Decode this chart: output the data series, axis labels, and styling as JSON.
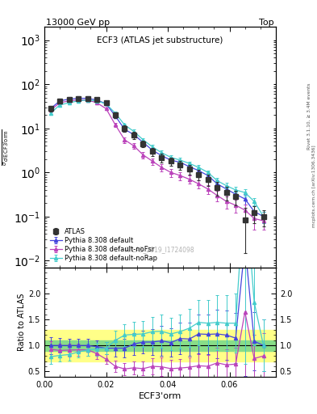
{
  "title_left": "13000 GeV pp",
  "title_right": "Top",
  "panel_title": "ECF3 (ATLAS jet substructure)",
  "ylabel_main": "1/σ dσ/d ECF3'orm",
  "ylabel_ratio": "Ratio to ATLAS",
  "xlabel": "ECF3'orm",
  "watermark": "ATLAS_2019_I1724098",
  "right_label_top": "Rivet 3.1.10, ≥ 3.4M events",
  "right_label_bot": "mcplots.cern.ch [arXiv:1306.3436]",
  "atlas_x": [
    0.002,
    0.005,
    0.008,
    0.011,
    0.014,
    0.017,
    0.02,
    0.023,
    0.026,
    0.029,
    0.032,
    0.035,
    0.038,
    0.041,
    0.044,
    0.047,
    0.05,
    0.053,
    0.056,
    0.059,
    0.062,
    0.065,
    0.068,
    0.071
  ],
  "atlas_y": [
    28,
    42,
    46,
    48,
    48,
    45,
    38,
    20,
    10,
    7,
    4.5,
    3.0,
    2.2,
    1.8,
    1.5,
    1.2,
    0.9,
    0.7,
    0.45,
    0.35,
    0.28,
    0.085,
    0.12,
    0.1
  ],
  "atlas_yerr": [
    4,
    5,
    5,
    5,
    5,
    5,
    4,
    3,
    1.5,
    1.2,
    0.8,
    0.6,
    0.5,
    0.4,
    0.35,
    0.3,
    0.25,
    0.2,
    0.15,
    0.12,
    0.1,
    0.07,
    0.05,
    0.04
  ],
  "py_def_x": [
    0.002,
    0.005,
    0.008,
    0.011,
    0.014,
    0.017,
    0.02,
    0.023,
    0.026,
    0.029,
    0.032,
    0.035,
    0.038,
    0.041,
    0.044,
    0.047,
    0.05,
    0.053,
    0.056,
    0.059,
    0.062,
    0.065,
    0.068,
    0.071
  ],
  "py_def_y": [
    28,
    42,
    46,
    48,
    48,
    44,
    36,
    19,
    9.5,
    7.2,
    4.8,
    3.2,
    2.4,
    1.9,
    1.7,
    1.35,
    1.1,
    0.85,
    0.55,
    0.42,
    0.32,
    0.25,
    0.13,
    0.1
  ],
  "py_def_yerr": [
    2,
    3,
    3,
    3,
    3,
    3,
    2.5,
    1.5,
    1.0,
    0.8,
    0.5,
    0.4,
    0.3,
    0.25,
    0.22,
    0.18,
    0.15,
    0.12,
    0.1,
    0.08,
    0.07,
    0.06,
    0.04,
    0.03
  ],
  "py_nofsr_x": [
    0.002,
    0.005,
    0.008,
    0.011,
    0.014,
    0.017,
    0.02,
    0.023,
    0.026,
    0.029,
    0.032,
    0.035,
    0.038,
    0.041,
    0.044,
    0.047,
    0.05,
    0.053,
    0.056,
    0.059,
    0.062,
    0.065,
    0.068,
    0.071
  ],
  "py_nofsr_y": [
    26,
    38,
    42,
    44,
    44,
    38,
    28,
    12,
    5.5,
    4.0,
    2.5,
    1.8,
    1.3,
    1.0,
    0.85,
    0.7,
    0.55,
    0.42,
    0.3,
    0.22,
    0.18,
    0.14,
    0.09,
    0.08
  ],
  "py_nofsr_yerr": [
    2,
    3,
    3,
    3,
    3,
    2.5,
    2,
    1.2,
    0.8,
    0.6,
    0.4,
    0.3,
    0.25,
    0.2,
    0.18,
    0.15,
    0.12,
    0.1,
    0.08,
    0.07,
    0.06,
    0.05,
    0.04,
    0.03
  ],
  "py_norap_x": [
    0.002,
    0.005,
    0.008,
    0.011,
    0.014,
    0.017,
    0.02,
    0.023,
    0.026,
    0.029,
    0.032,
    0.035,
    0.038,
    0.041,
    0.044,
    0.047,
    0.05,
    0.053,
    0.056,
    0.059,
    0.062,
    0.065,
    0.068,
    0.071
  ],
  "py_norap_y": [
    22,
    34,
    38,
    42,
    44,
    42,
    36,
    22,
    12,
    8.5,
    5.5,
    3.8,
    2.8,
    2.2,
    1.9,
    1.6,
    1.3,
    1.0,
    0.65,
    0.5,
    0.4,
    0.35,
    0.22,
    0.1
  ],
  "py_norap_yerr": [
    2,
    3,
    3,
    3,
    3,
    3,
    2.5,
    1.5,
    1.0,
    0.8,
    0.5,
    0.4,
    0.3,
    0.25,
    0.22,
    0.18,
    0.15,
    0.12,
    0.1,
    0.08,
    0.07,
    0.06,
    0.04,
    0.03
  ],
  "color_atlas": "#333333",
  "color_py_def": "#4444dd",
  "color_py_nofsr": "#bb44bb",
  "color_py_norap": "#44cccc",
  "xlim": [
    0.0,
    0.075
  ],
  "ylim_main": [
    0.007,
    2000
  ],
  "ylim_ratio": [
    0.4,
    2.5
  ],
  "ratio_yticks": [
    0.5,
    1.0,
    1.5,
    2.0
  ]
}
